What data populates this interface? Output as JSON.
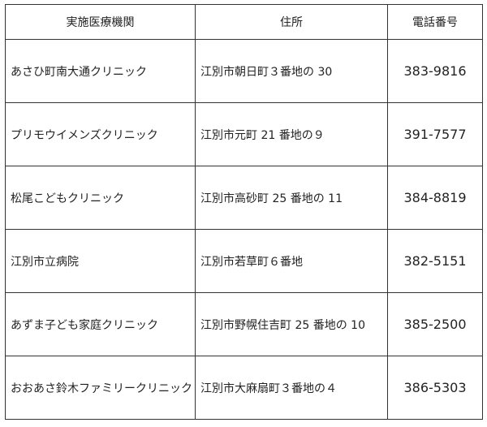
{
  "table": {
    "header": [
      "実施医療機関",
      "住所",
      "電話番号"
    ],
    "rows": [
      [
        "あさひ町南大通クリニック",
        "江別市朝日町３番地の 30",
        "383-9816"
      ],
      [
        "プリモウイメンズクリニック",
        "江別市元町 21 番地の９",
        "391-7577"
      ],
      [
        "松尾こどもクリニック",
        "江別市高砂町 25 番地の 11",
        "384-8819"
      ],
      [
        "江別市立病院",
        "江別市若草町６番地",
        "382-5151"
      ],
      [
        "あずま子ども家庭クリニック",
        "江別市野幌住吉町 25 番地の 10",
        "385-2500"
      ],
      [
        "おおあさ鈴木ファミリークリニック",
        "江別市大麻扇町３番地の４",
        "386-5303"
      ]
    ]
  }
}
